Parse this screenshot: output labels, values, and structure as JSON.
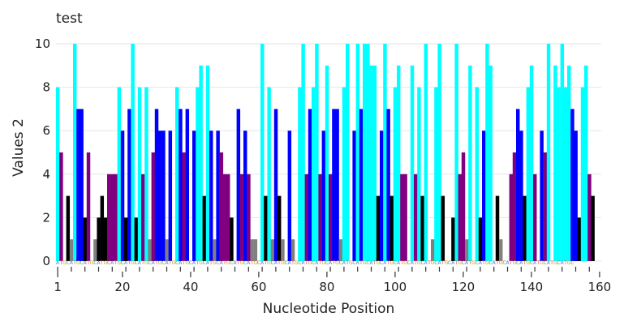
{
  "chart_data": {
    "type": "bar",
    "title": "test",
    "xlabel": "Nucleotide Position",
    "ylabel": "Values 2",
    "xlim": [
      1,
      160
    ],
    "ylim": [
      0,
      10
    ],
    "x_ticks": [
      1,
      20,
      40,
      60,
      80,
      100,
      120,
      140,
      160
    ],
    "y_ticks": [
      0,
      2,
      4,
      6,
      8,
      10
    ],
    "grid": "horizontal",
    "legend": "none",
    "sequence_track": "ATGCATGCATGCATGCATGCATGCATGCATGCATGCATGCATGCATGCATGCATGCATGCATGCATGCATGCATGCATGCATGCATGCATGCATGCATGCATGCATGCATGCATGCATGCATGCATGCATGCATGCATGCATGCATGCATGC",
    "base_colors": {
      "A": "#4d80e6",
      "T": "#e05a4a",
      "G": "#c8a020",
      "C": "#4a9a4a"
    },
    "bar_colors": {
      "cyan": "#00ffff",
      "blue": "#0000ff",
      "purple": "#800080",
      "black": "#000000",
      "gray": "#808080"
    },
    "x": [
      1,
      2,
      3,
      4,
      5,
      6,
      7,
      8,
      9,
      10,
      11,
      12,
      13,
      14,
      15,
      16,
      17,
      18,
      19,
      20,
      21,
      22,
      23,
      24,
      25,
      26,
      27,
      28,
      29,
      30,
      31,
      32,
      33,
      34,
      35,
      36,
      37,
      38,
      39,
      40,
      41,
      42,
      43,
      44,
      45,
      46,
      47,
      48,
      49,
      50,
      51,
      52,
      53,
      54,
      55,
      56,
      57,
      58,
      59,
      60,
      61,
      62,
      63,
      64,
      65,
      66,
      67,
      68,
      69,
      70,
      71,
      72,
      73,
      74,
      75,
      76,
      77,
      78,
      79,
      80,
      81,
      82,
      83,
      84,
      85,
      86,
      87,
      88,
      89,
      90,
      91,
      92,
      93,
      94,
      95,
      96,
      97,
      98,
      99,
      100,
      101,
      102,
      103,
      104,
      105,
      106,
      107,
      108,
      109,
      110,
      111,
      112,
      113,
      114,
      115,
      116,
      117,
      118,
      119,
      120,
      121,
      122,
      123,
      124,
      125,
      126,
      127,
      128,
      129,
      130,
      131,
      132,
      133,
      134,
      135,
      136,
      137,
      138,
      139,
      140,
      141,
      142,
      143,
      144,
      145,
      146,
      147,
      148,
      149,
      150,
      151,
      152,
      153,
      154,
      155,
      156,
      157,
      158,
      159,
      160
    ],
    "values": [
      8,
      5,
      0,
      3,
      1,
      10,
      7,
      7,
      2,
      5,
      0,
      1,
      2,
      3,
      2,
      4,
      4,
      4,
      8,
      6,
      2,
      7,
      10,
      2,
      8,
      4,
      8,
      1,
      5,
      7,
      6,
      6,
      1,
      6,
      0,
      8,
      7,
      5,
      7,
      0,
      6,
      8,
      9,
      3,
      9,
      6,
      1,
      6,
      5,
      4,
      4,
      2,
      0,
      7,
      4,
      6,
      4,
      1,
      1,
      0,
      10,
      3,
      8,
      1,
      7,
      3,
      1,
      0,
      6,
      1,
      0,
      8,
      10,
      4,
      7,
      8,
      10,
      4,
      6,
      9,
      4,
      7,
      7,
      1,
      8,
      10,
      0,
      6,
      10,
      7,
      10,
      10,
      9,
      9,
      3,
      6,
      10,
      7,
      3,
      8,
      9,
      4,
      4,
      0,
      9,
      4,
      8,
      3,
      10,
      0,
      1,
      8,
      10,
      3,
      0,
      0,
      2,
      10,
      4,
      5,
      1,
      9,
      0,
      8,
      2,
      6,
      10,
      9,
      0,
      3,
      1,
      0,
      0,
      4,
      5,
      7,
      6,
      3,
      8,
      9,
      4,
      0,
      6,
      5,
      10,
      0,
      9,
      8,
      10,
      8,
      9,
      7,
      6,
      2,
      8,
      9,
      4,
      3,
      0,
      0
    ],
    "colors": [
      "cyan",
      "purple",
      "black",
      "black",
      "gray",
      "cyan",
      "blue",
      "blue",
      "black",
      "purple",
      "gray",
      "gray",
      "black",
      "black",
      "black",
      "purple",
      "purple",
      "purple",
      "cyan",
      "blue",
      "black",
      "blue",
      "cyan",
      "black",
      "cyan",
      "purple",
      "cyan",
      "gray",
      "purple",
      "blue",
      "blue",
      "blue",
      "gray",
      "blue",
      "gray",
      "cyan",
      "blue",
      "purple",
      "blue",
      "gray",
      "blue",
      "cyan",
      "cyan",
      "black",
      "cyan",
      "blue",
      "gray",
      "blue",
      "purple",
      "purple",
      "purple",
      "black",
      "gray",
      "blue",
      "purple",
      "blue",
      "purple",
      "gray",
      "gray",
      "gray",
      "cyan",
      "black",
      "cyan",
      "gray",
      "blue",
      "black",
      "gray",
      "gray",
      "blue",
      "gray",
      "gray",
      "cyan",
      "cyan",
      "purple",
      "blue",
      "cyan",
      "cyan",
      "purple",
      "blue",
      "cyan",
      "purple",
      "blue",
      "blue",
      "gray",
      "cyan",
      "cyan",
      "gray",
      "blue",
      "cyan",
      "blue",
      "cyan",
      "cyan",
      "cyan",
      "cyan",
      "black",
      "blue",
      "cyan",
      "blue",
      "black",
      "cyan",
      "cyan",
      "purple",
      "purple",
      "gray",
      "cyan",
      "purple",
      "cyan",
      "black",
      "cyan",
      "gray",
      "gray",
      "cyan",
      "cyan",
      "black",
      "gray",
      "gray",
      "black",
      "cyan",
      "purple",
      "purple",
      "gray",
      "cyan",
      "gray",
      "cyan",
      "black",
      "blue",
      "cyan",
      "cyan",
      "gray",
      "black",
      "gray",
      "gray",
      "gray",
      "purple",
      "purple",
      "blue",
      "blue",
      "black",
      "cyan",
      "cyan",
      "purple",
      "gray",
      "blue",
      "purple",
      "cyan",
      "gray",
      "cyan",
      "cyan",
      "cyan",
      "cyan",
      "cyan",
      "blue",
      "blue",
      "black",
      "cyan",
      "cyan",
      "purple",
      "black",
      "gray",
      "gray"
    ]
  }
}
